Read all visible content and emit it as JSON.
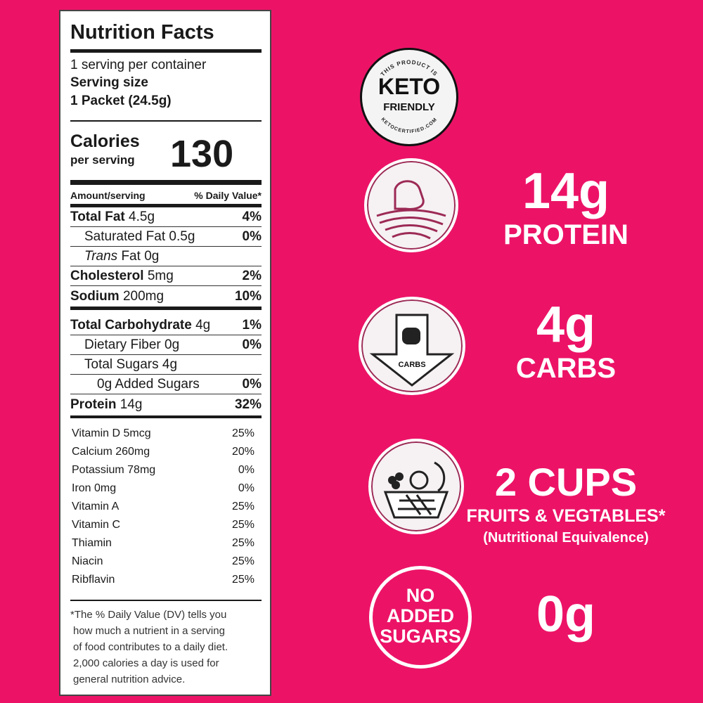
{
  "label": {
    "title": "Nutrition Facts",
    "servings": "1 serving per container",
    "serving_size_label": "Serving size",
    "serving_size": "1 Packet (24.5g)",
    "calories_label": "Calories",
    "per_serving": "per serving",
    "calories": "130",
    "amount_header": "Amount/serving",
    "dv_header": "% Daily Value*",
    "rows": [
      {
        "name": "Total Fat",
        "amount": "4.5g",
        "dv": "4%"
      },
      {
        "name": "Saturated Fat",
        "amount": "0.5g",
        "dv": "0%"
      },
      {
        "name": "Trans",
        "name2": "Fat",
        "amount": "0g",
        "dv": ""
      },
      {
        "name": "Cholesterol",
        "amount": "5mg",
        "dv": "2%"
      },
      {
        "name": "Sodium",
        "amount": "200mg",
        "dv": "10%"
      },
      {
        "name": "Total Carbohydrate",
        "amount": "4g",
        "dv": "1%"
      },
      {
        "name": "Dietary Fiber",
        "amount": "0g",
        "dv": "0%"
      },
      {
        "name": "Total Sugars",
        "amount": "4g",
        "dv": ""
      },
      {
        "name": "0g Added Sugars",
        "amount": "",
        "dv": "0%"
      },
      {
        "name": "Protein",
        "amount": "14g",
        "dv": "32%"
      }
    ],
    "vitamins": [
      {
        "name": "Vitamin D 5mcg",
        "dv": "25%"
      },
      {
        "name": "Calcium 260mg",
        "dv": "20%"
      },
      {
        "name": "Potassium 78mg",
        "dv": "0%"
      },
      {
        "name": "Iron 0mg",
        "dv": "0%"
      },
      {
        "name": "Vitamin A",
        "dv": "25%"
      },
      {
        "name": "Vitamin C",
        "dv": "25%"
      },
      {
        "name": "Thiamin",
        "dv": "25%"
      },
      {
        "name": "Niacin",
        "dv": "25%"
      },
      {
        "name": "Ribflavin",
        "dv": "25%"
      }
    ],
    "footnote": [
      "*The % Daily Value (DV) tells you",
      "how much a nutrient in a serving",
      "of food contributes to a daily diet.",
      "2,000 calories a day is used for",
      "general nutrition advice."
    ]
  },
  "badge": {
    "top": "THIS PRODUCT IS",
    "main": "KETO",
    "sub": "FRIENDLY",
    "bottom": "KETOCERTIFIED.COM"
  },
  "claims": {
    "protein": {
      "value": "14g",
      "label": "PROTEIN",
      "icon": "muscle-icon"
    },
    "carbs": {
      "value": "4g",
      "label": "CARBS",
      "icon_text": "CARBS",
      "icon": "down-arrow-bread-icon"
    },
    "fruits": {
      "value": "2 CUPS",
      "label": "FRUITS & VEGTABLES*",
      "note": "(Nutritional Equivalence)",
      "icon": "fruit-basket-icon"
    },
    "sugars": {
      "value": "0g",
      "icon_lines": [
        "NO",
        "ADDED",
        "SUGARS"
      ]
    }
  },
  "colors": {
    "background": "#EC1367",
    "text": "#ffffff"
  }
}
